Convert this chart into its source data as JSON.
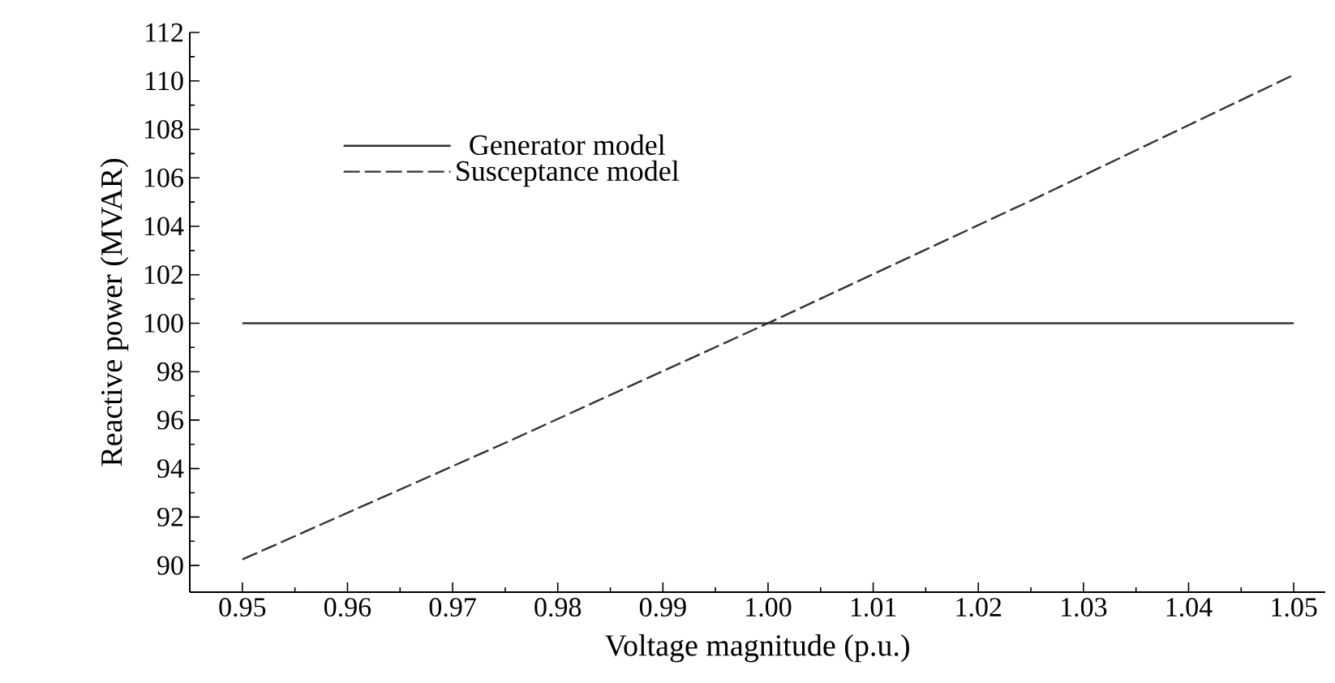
{
  "chart_data": {
    "type": "line",
    "xlabel": "Voltage magnitude (p.u.)",
    "ylabel": "Reactive power (MVAR)",
    "xlim": [
      0.945,
      1.053
    ],
    "ylim": [
      88.9,
      112
    ],
    "xticks": [
      0.95,
      0.96,
      0.97,
      0.98,
      0.99,
      {
        "value": 1.0,
        "label": "1.00"
      },
      1.01,
      1.02,
      1.03,
      1.04,
      1.05
    ],
    "yticks": [
      90,
      92,
      94,
      96,
      98,
      100,
      102,
      104,
      106,
      108,
      110,
      112
    ],
    "grid": false,
    "legend": "top left",
    "marker": "none",
    "series": [
      {
        "name": "Generator model",
        "color": "#333333",
        "line_style": "solid",
        "x": [
          0.95,
          1.05
        ],
        "values": [
          100,
          100
        ]
      },
      {
        "name": "Susceptance model",
        "color": "#333333",
        "line_style": "dashed",
        "x": [
          0.95,
          0.975,
          1.0,
          1.025,
          1.05
        ],
        "values": [
          90.25,
          95.06,
          100,
          105.06,
          110.25
        ]
      }
    ]
  }
}
